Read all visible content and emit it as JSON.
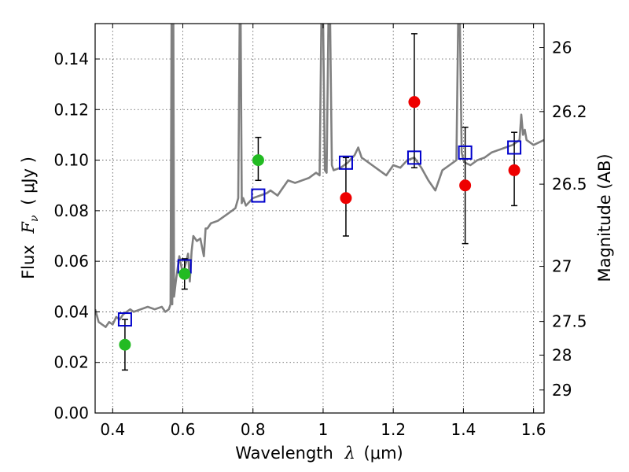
{
  "chart_data": {
    "type": "scatter",
    "x_axis": {
      "label_prefix": "Wavelength",
      "symbol": "λ",
      "unit": "(μm)",
      "range": [
        0.35,
        1.63
      ],
      "ticks": [
        0.4,
        0.6,
        0.8,
        1.0,
        1.2,
        1.4,
        1.6
      ],
      "tick_labels": [
        "0.4",
        "0.6",
        "0.8",
        "1",
        "1.2",
        "1.4",
        "1.6"
      ]
    },
    "y_axis": {
      "label_prefix": "Flux",
      "symbol": "F",
      "subscript": "ν",
      "unit": "( μJy )",
      "range": [
        0.0,
        0.154
      ],
      "ticks": [
        0.0,
        0.02,
        0.04,
        0.06,
        0.08,
        0.1,
        0.12,
        0.14
      ],
      "tick_labels": [
        "0.00",
        "0.02",
        "0.04",
        "0.06",
        "0.08",
        "0.10",
        "0.12",
        "0.14"
      ]
    },
    "y2_axis": {
      "label": "Magnitude (AB)",
      "tick_labels": [
        {
          "text": "26",
          "flux": 0.1445
        },
        {
          "text": "26.2",
          "flux": 0.1192
        },
        {
          "text": "26.5",
          "flux": 0.0905
        },
        {
          "text": "27",
          "flux": 0.058
        },
        {
          "text": "27.5",
          "flux": 0.0362
        },
        {
          "text": "28",
          "flux": 0.0229
        },
        {
          "text": "29",
          "flux": 0.0091
        }
      ]
    },
    "grid": true,
    "series": [
      {
        "kind": "line",
        "color": "#808080",
        "x": [
          0.35,
          0.36,
          0.37,
          0.38,
          0.39,
          0.4,
          0.41,
          0.42,
          0.43,
          0.44,
          0.45,
          0.46,
          0.48,
          0.5,
          0.52,
          0.54,
          0.55,
          0.56,
          0.565,
          0.568,
          0.57,
          0.573,
          0.575,
          0.58,
          0.59,
          0.6,
          0.61,
          0.615,
          0.62,
          0.625,
          0.63,
          0.64,
          0.65,
          0.66,
          0.665,
          0.67,
          0.675,
          0.68,
          0.7,
          0.72,
          0.74,
          0.75,
          0.758,
          0.762,
          0.765,
          0.768,
          0.772,
          0.78,
          0.8,
          0.82,
          0.84,
          0.85,
          0.87,
          0.88,
          0.9,
          0.92,
          0.94,
          0.96,
          0.98,
          0.99,
          0.995,
          1.0,
          1.005,
          1.01,
          1.015,
          1.02,
          1.025,
          1.03,
          1.05,
          1.07,
          1.09,
          1.1,
          1.11,
          1.12,
          1.14,
          1.16,
          1.18,
          1.2,
          1.22,
          1.24,
          1.26,
          1.28,
          1.3,
          1.32,
          1.34,
          1.36,
          1.38,
          1.385,
          1.39,
          1.395,
          1.4,
          1.405,
          1.42,
          1.44,
          1.46,
          1.48,
          1.5,
          1.52,
          1.54,
          1.56,
          1.565,
          1.57,
          1.575,
          1.58,
          1.6,
          1.63
        ],
        "y": [
          0.041,
          0.036,
          0.035,
          0.034,
          0.036,
          0.035,
          0.038,
          0.037,
          0.039,
          0.04,
          0.041,
          0.04,
          0.041,
          0.042,
          0.041,
          0.042,
          0.04,
          0.041,
          0.043,
          0.154,
          0.043,
          0.154,
          0.046,
          0.052,
          0.062,
          0.055,
          0.06,
          0.063,
          0.052,
          0.064,
          0.07,
          0.068,
          0.069,
          0.062,
          0.073,
          0.073,
          0.074,
          0.075,
          0.076,
          0.078,
          0.08,
          0.081,
          0.085,
          0.154,
          0.154,
          0.083,
          0.085,
          0.082,
          0.085,
          0.086,
          0.087,
          0.088,
          0.086,
          0.088,
          0.092,
          0.091,
          0.092,
          0.093,
          0.095,
          0.094,
          0.154,
          0.154,
          0.096,
          0.095,
          0.154,
          0.154,
          0.098,
          0.096,
          0.097,
          0.099,
          0.102,
          0.105,
          0.101,
          0.1,
          0.098,
          0.096,
          0.094,
          0.098,
          0.097,
          0.1,
          0.101,
          0.097,
          0.092,
          0.088,
          0.096,
          0.098,
          0.1,
          0.154,
          0.154,
          0.103,
          0.1,
          0.099,
          0.098,
          0.1,
          0.101,
          0.103,
          0.104,
          0.105,
          0.106,
          0.108,
          0.118,
          0.11,
          0.112,
          0.108,
          0.106,
          0.108
        ]
      },
      {
        "kind": "squares",
        "color": "#0000cc",
        "x": [
          0.435,
          0.605,
          0.815,
          1.065,
          1.26,
          1.405,
          1.545
        ],
        "y": [
          0.037,
          0.058,
          0.086,
          0.099,
          0.101,
          0.103,
          0.105
        ]
      },
      {
        "kind": "points",
        "x": [
          0.435,
          0.605,
          0.815,
          1.065,
          1.26,
          1.405,
          1.545
        ],
        "y": [
          0.027,
          0.055,
          0.1,
          0.085,
          0.123,
          0.09,
          0.096
        ],
        "yerr_low": [
          0.017,
          0.049,
          0.092,
          0.07,
          0.097,
          0.067,
          0.082
        ],
        "yerr_high": [
          0.037,
          0.061,
          0.109,
          0.101,
          0.15,
          0.113,
          0.111
        ],
        "colors": [
          "#22bb22",
          "#22bb22",
          "#22bb22",
          "#ee0000",
          "#ee0000",
          "#ee0000",
          "#ee0000"
        ]
      }
    ]
  }
}
